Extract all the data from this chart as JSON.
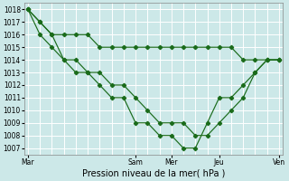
{
  "xlabel": "Pression niveau de la mer( hPa )",
  "background_color": "#cce8e8",
  "grid_color": "#ffffff",
  "line_color": "#1a6b1a",
  "ylim_min": 1006.5,
  "ylim_max": 1018.5,
  "yticks": [
    1007,
    1008,
    1009,
    1010,
    1011,
    1012,
    1013,
    1014,
    1015,
    1016,
    1017,
    1018
  ],
  "x_tick_labels": [
    "Mar",
    "Sam",
    "Mer",
    "Jeu",
    "Ven"
  ],
  "x_tick_positions": [
    0,
    9,
    12,
    16,
    21
  ],
  "series1_x": [
    0,
    1,
    2,
    3,
    4,
    5,
    6,
    7,
    8,
    9,
    10,
    11,
    12,
    13,
    14,
    15,
    16,
    17,
    18,
    19,
    20,
    21
  ],
  "series1_y": [
    1018,
    1017,
    1016,
    1016,
    1016,
    1016,
    1015,
    1015,
    1015,
    1015,
    1015,
    1015,
    1015,
    1015,
    1015,
    1015,
    1015,
    1015,
    1014,
    1014,
    1014,
    1014
  ],
  "series2_x": [
    0,
    1,
    2,
    3,
    4,
    5,
    6,
    7,
    8,
    9,
    10,
    11,
    12,
    13,
    14,
    15,
    16,
    17,
    18,
    19,
    20,
    21
  ],
  "series2_y": [
    1018,
    1017,
    1016,
    1014,
    1014,
    1013,
    1013,
    1012,
    1012,
    1011,
    1010,
    1009,
    1009,
    1009,
    1008,
    1008,
    1009,
    1010,
    1011,
    1013,
    1014,
    1014
  ],
  "series3_x": [
    0,
    1,
    2,
    3,
    4,
    5,
    6,
    7,
    8,
    9,
    10,
    11,
    12,
    13,
    14,
    15,
    16,
    17,
    18,
    19,
    20,
    21
  ],
  "series3_y": [
    1018,
    1016,
    1015,
    1014,
    1013,
    1013,
    1012,
    1011,
    1011,
    1009,
    1009,
    1008,
    1008,
    1007,
    1007,
    1009,
    1011,
    1011,
    1012,
    1013,
    1014,
    1014
  ],
  "vline_positions": [
    0,
    9,
    12,
    16,
    21
  ],
  "vline_color": "#555555",
  "xlabel_fontsize": 7,
  "tick_labelsize": 5.5
}
